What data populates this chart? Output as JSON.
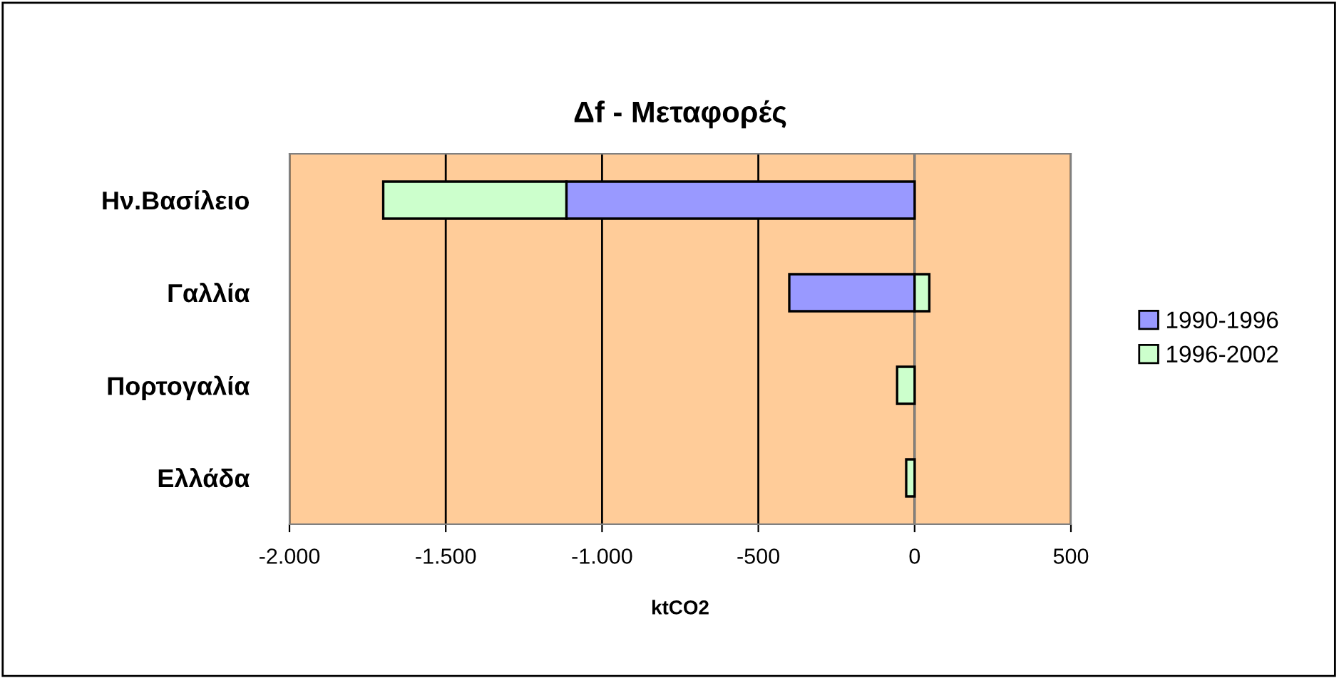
{
  "chart_data": {
    "type": "bar",
    "orientation": "horizontal",
    "stacked": true,
    "title": "Δf - Μεταφορές",
    "xlabel": "ktCO2",
    "categories": [
      "Ην.Βασίλειο",
      "Γαλλία",
      "Πορτογαλία",
      "Ελλάδα"
    ],
    "series": [
      {
        "name": "1990-1996",
        "color": "#9999ff",
        "values": [
          -1114,
          -401,
          null,
          null
        ]
      },
      {
        "name": "1996-2002",
        "color": "#ccffcc",
        "values": [
          -586,
          47,
          -56,
          -27
        ]
      }
    ],
    "xlim": [
      -2000,
      500
    ],
    "xticks": [
      {
        "value": -2000,
        "label": "-2.000"
      },
      {
        "value": -1500,
        "label": "-1.500"
      },
      {
        "value": -1000,
        "label": "-1.000"
      },
      -500,
      0,
      500
    ],
    "grid": "x",
    "legend": "right"
  }
}
